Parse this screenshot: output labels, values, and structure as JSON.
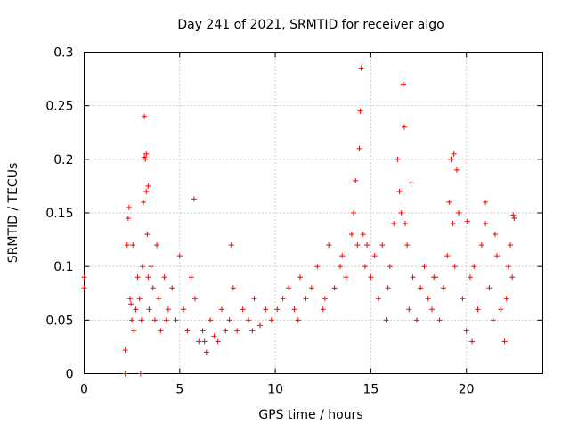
{
  "chart_data": {
    "type": "scatter",
    "title": "Day 241 of 2021, SRMTID for receiver algo",
    "xlabel": "GPS time / hours",
    "ylabel": "SRMTID / TECUs",
    "xlim": [
      0,
      24
    ],
    "ylim": [
      0,
      0.3
    ],
    "xticks": [
      0,
      5,
      10,
      15,
      20
    ],
    "xtick_labels": [
      "0",
      "5",
      "10",
      "15",
      "20"
    ],
    "yticks": [
      0,
      0.05,
      0.1,
      0.15,
      0.2,
      0.25,
      0.3
    ],
    "ytick_labels": [
      "0",
      "0.05",
      "0.1",
      "0.15",
      "0.2",
      "0.25",
      "0.3"
    ],
    "grid": true,
    "marker": "+",
    "color": "#ff0000",
    "series": [
      {
        "name": "SRMTID",
        "x": [
          0.0,
          0.0,
          2.15,
          2.25,
          2.3,
          2.35,
          2.4,
          2.45,
          2.5,
          2.55,
          2.6,
          2.7,
          2.8,
          2.9,
          3.0,
          3.05,
          3.1,
          3.15,
          3.2,
          3.25,
          3.3,
          3.35,
          3.4,
          3.5,
          3.6,
          3.7,
          3.8,
          3.9,
          4.0,
          4.2,
          4.4,
          4.6,
          4.8,
          5.0,
          5.2,
          5.4,
          5.6,
          5.8,
          6.0,
          6.2,
          6.4,
          6.6,
          6.8,
          7.0,
          7.2,
          7.4,
          7.6,
          7.8,
          8.0,
          8.3,
          8.6,
          8.9,
          9.2,
          9.5,
          9.8,
          10.1,
          10.4,
          10.7,
          11.0,
          11.3,
          11.6,
          11.9,
          12.2,
          12.5,
          12.8,
          13.1,
          13.4,
          13.7,
          14.0,
          14.1,
          14.2,
          14.3,
          14.4,
          14.45,
          14.5,
          14.6,
          14.7,
          14.8,
          15.0,
          15.2,
          15.4,
          15.6,
          15.8,
          16.0,
          16.2,
          16.4,
          16.5,
          16.6,
          16.7,
          16.75,
          16.8,
          16.9,
          17.0,
          17.2,
          17.4,
          17.6,
          17.8,
          18.0,
          18.2,
          18.4,
          18.6,
          18.8,
          19.0,
          19.1,
          19.2,
          19.3,
          19.4,
          19.5,
          19.6,
          19.8,
          20.0,
          20.2,
          20.4,
          20.6,
          20.8,
          21.0,
          21.2,
          21.4,
          21.6,
          21.8,
          22.0,
          22.1,
          22.2,
          22.3,
          22.4,
          22.5,
          2.15,
          2.95,
          3.15,
          3.25,
          3.35,
          5.75,
          7.7,
          13.5,
          17.1,
          19.35,
          20.05,
          21.0,
          21.5,
          22.45,
          4.3,
          6.3,
          8.8,
          11.2,
          12.6,
          15.9,
          18.3,
          20.3
        ],
        "values": [
          0.09,
          0.08,
          0.022,
          0.12,
          0.145,
          0.155,
          0.07,
          0.065,
          0.05,
          0.12,
          0.04,
          0.06,
          0.09,
          0.07,
          0.05,
          0.1,
          0.16,
          0.24,
          0.2,
          0.17,
          0.13,
          0.09,
          0.06,
          0.1,
          0.08,
          0.05,
          0.12,
          0.07,
          0.04,
          0.09,
          0.06,
          0.08,
          0.05,
          0.11,
          0.06,
          0.04,
          0.09,
          0.07,
          0.03,
          0.04,
          0.02,
          0.05,
          0.035,
          0.03,
          0.06,
          0.04,
          0.05,
          0.08,
          0.04,
          0.06,
          0.05,
          0.07,
          0.045,
          0.06,
          0.05,
          0.06,
          0.07,
          0.08,
          0.06,
          0.09,
          0.07,
          0.08,
          0.1,
          0.06,
          0.12,
          0.08,
          0.1,
          0.09,
          0.13,
          0.15,
          0.18,
          0.12,
          0.21,
          0.245,
          0.285,
          0.13,
          0.1,
          0.12,
          0.09,
          0.11,
          0.07,
          0.12,
          0.05,
          0.1,
          0.14,
          0.2,
          0.17,
          0.15,
          0.27,
          0.23,
          0.14,
          0.12,
          0.06,
          0.09,
          0.05,
          0.08,
          0.1,
          0.07,
          0.06,
          0.09,
          0.05,
          0.08,
          0.11,
          0.16,
          0.2,
          0.14,
          0.1,
          0.19,
          0.15,
          0.07,
          0.04,
          0.09,
          0.1,
          0.06,
          0.12,
          0.14,
          0.08,
          0.05,
          0.11,
          0.06,
          0.03,
          0.07,
          0.1,
          0.12,
          0.09,
          0.145,
          0.0,
          0.0,
          0.202,
          0.205,
          0.175,
          0.163,
          0.12,
          0.11,
          0.178,
          0.205,
          0.142,
          0.16,
          0.13,
          0.148,
          0.05,
          0.03,
          0.04,
          0.05,
          0.07,
          0.08,
          0.09,
          0.03
        ]
      }
    ]
  }
}
